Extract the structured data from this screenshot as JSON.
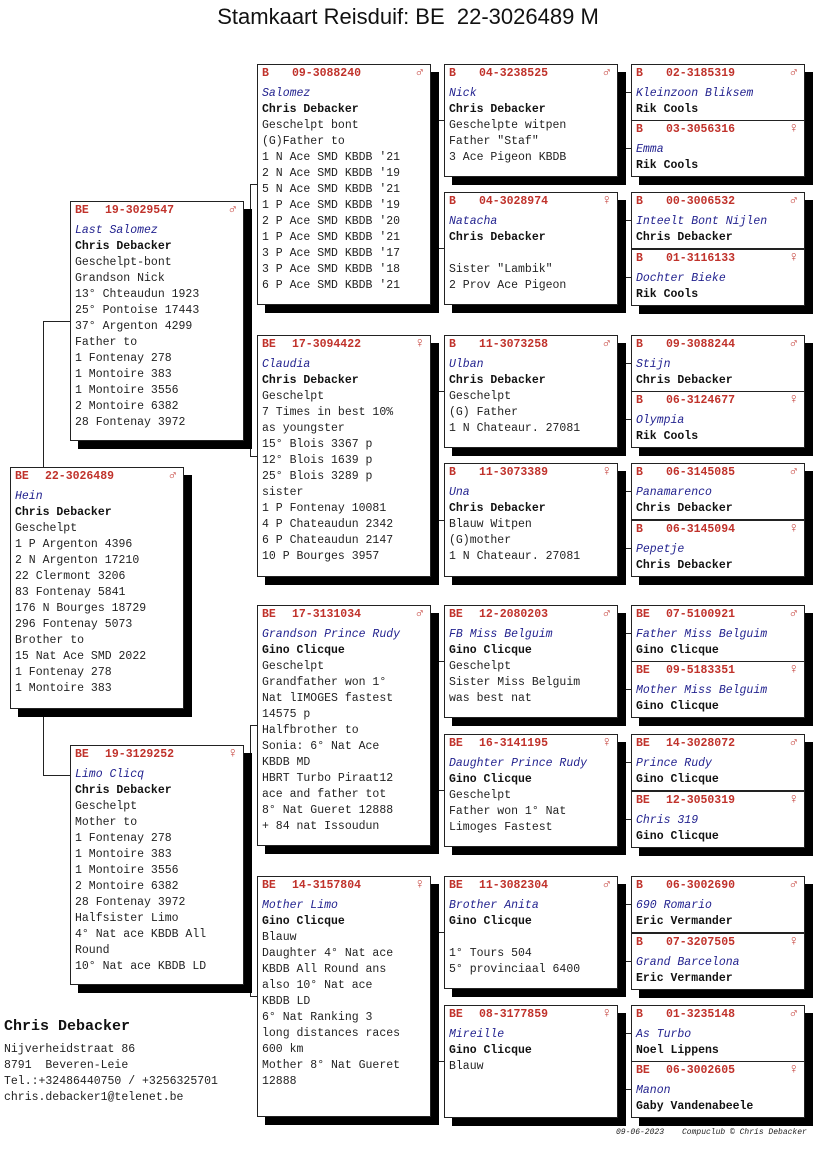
{
  "title": "Stamkaart Reisduif: BE  22-3026489 M",
  "colors": {
    "ring": "#c0322b",
    "name": "#23238f",
    "shadow": "#000000"
  },
  "pigeons": [
    {
      "id": "subject",
      "country": "BE",
      "ring": "22-3026489",
      "sex": "♂",
      "name": "Hein",
      "owner": "Chris Debacker",
      "lines": [
        "Geschelpt",
        "1 P Argenton 4396",
        "2 N Argenton 17210",
        "22 Clermont 3206",
        "83 Fontenay 5841",
        "176 N Bourges 18729",
        "296 Fontenay 5073",
        "Brother to",
        "15 Nat Ace SMD 2022",
        "1 Fontenay 278",
        "1 Montoire 383"
      ]
    },
    {
      "id": "father",
      "country": "BE",
      "ring": "19-3029547",
      "sex": "♂",
      "name": "Last Salomez",
      "owner": "Chris Debacker",
      "lines": [
        "Geschelpt-bont",
        "Grandson Nick",
        "13° Chteaudun 1923",
        "25° Pontoise 17443",
        "37° Argenton 4299",
        "Father to",
        "1 Fontenay 278",
        "1 Montoire 383",
        "1 Montoire 3556",
        "2 Montoire 6382",
        "28 Fontenay 3972"
      ]
    },
    {
      "id": "mother",
      "country": "BE",
      "ring": "19-3129252",
      "sex": "♀",
      "name": "Limo Clicq",
      "owner": "Chris Debacker",
      "lines": [
        "Geschelpt",
        "Mother to",
        "1 Fontenay 278",
        "1 Montoire 383",
        "1 Montoire 3556",
        "2 Montoire 6382",
        "28 Fontenay 3972",
        "Halfsister Limo",
        "4° Nat ace KBDB All",
        "Round",
        "10° Nat ace KBDB LD"
      ]
    },
    {
      "id": "ff",
      "country": "B",
      "ring": "09-3088240",
      "sex": "♂",
      "name": "Salomez",
      "owner": "Chris Debacker",
      "lines": [
        "Geschelpt bont",
        "(G)Father to",
        "1 N Ace SMD KBDB '21",
        "2 N Ace SMD KBDB '19",
        "5 N Ace SMD KBDB '21",
        "1 P Ace SMD KBDB '19",
        "2 P Ace SMD KBDB '20",
        "1 P Ace SMD KBDB '21",
        "3 P Ace SMD KBDB '17",
        "3 P Ace SMD KBDB '18",
        "6 P Ace SMD KBDB '21"
      ]
    },
    {
      "id": "fm",
      "country": "BE",
      "ring": "17-3094422",
      "sex": "♀",
      "name": "Claudia",
      "owner": "Chris Debacker",
      "lines": [
        "Geschelpt",
        "7 Times in best 10%",
        "as youngster",
        "15° Blois 3367 p",
        "12° Blois 1639 p",
        "25° Blois 3289 p",
        "sister",
        "1 P Fontenay 10081",
        "4 P Chateaudun 2342",
        "6 P Chateaudun 2147",
        "10 P Bourges 3957"
      ]
    },
    {
      "id": "mf",
      "country": "BE",
      "ring": "17-3131034",
      "sex": "♂",
      "name": "Grandson Prince Rudy",
      "owner": "Gino Clicque",
      "lines": [
        "Geschelpt",
        "Grandfather won 1°",
        "Nat lIMOGES fastest",
        "14575 p",
        "Halfbrother to",
        "Sonia: 6° Nat Ace",
        "KBDB MD",
        "HBRT Turbo Piraat12",
        "ace and father tot",
        "8° Nat Gueret 12888",
        "+ 84 nat Issoudun"
      ]
    },
    {
      "id": "mm",
      "country": "BE",
      "ring": "14-3157804",
      "sex": "♀",
      "name": "Mother Limo",
      "owner": "Gino Clicque",
      "lines": [
        "Blauw",
        "Daughter 4° Nat ace",
        "KBDB All Round ans",
        "also 10° Nat ace",
        "KBDB LD",
        "6° Nat Ranking 3",
        "long distances races",
        "600 km",
        "Mother 8° Nat Gueret",
        "12888"
      ]
    },
    {
      "id": "fff",
      "country": "B",
      "ring": "04-3238525",
      "sex": "♂",
      "name": "Nick",
      "owner": "Chris Debacker",
      "lines": [
        "Geschelpte witpen",
        "Father \"Staf\"",
        "3 Ace Pigeon KBDB"
      ]
    },
    {
      "id": "ffm",
      "country": "B",
      "ring": "04-3028974",
      "sex": "♀",
      "name": "Natacha",
      "owner": "Chris Debacker",
      "lines": [
        "",
        "Sister \"Lambik\"",
        "2 Prov Ace Pigeon"
      ]
    },
    {
      "id": "fmf",
      "country": "B",
      "ring": "11-3073258",
      "sex": "♂",
      "name": "Ulban",
      "owner": "Chris Debacker",
      "lines": [
        "Geschelpt",
        "(G) Father",
        "1 N Chateaur. 27081"
      ]
    },
    {
      "id": "fmm",
      "country": "B",
      "ring": "11-3073389",
      "sex": "♀",
      "name": "Una",
      "owner": "Chris Debacker",
      "lines": [
        "Blauw Witpen",
        "(G)mother",
        "1 N Chateaur. 27081"
      ]
    },
    {
      "id": "mff",
      "country": "BE",
      "ring": "12-2080203",
      "sex": "♂",
      "name": "FB Miss Belguim",
      "owner": "Gino Clicque",
      "lines": [
        "Geschelpt",
        "Sister Miss Belguim",
        "was best nat"
      ]
    },
    {
      "id": "mfm",
      "country": "BE",
      "ring": "16-3141195",
      "sex": "♀",
      "name": "Daughter Prince Rudy",
      "owner": "Gino Clicque",
      "lines": [
        "Geschelpt",
        "Father won 1° Nat",
        "Limoges Fastest"
      ]
    },
    {
      "id": "mmf",
      "country": "BE",
      "ring": "11-3082304",
      "sex": "♂",
      "name": "Brother Anita",
      "owner": "Gino Clicque",
      "lines": [
        "",
        "1° Tours 504",
        "5° provinciaal 6400"
      ]
    },
    {
      "id": "mmm",
      "country": "BE",
      "ring": "08-3177859",
      "sex": "♀",
      "name": "Mireille",
      "owner": "Gino Clicque",
      "lines": [
        "Blauw"
      ]
    },
    {
      "id": "g5-1",
      "country": "B",
      "ring": "02-3185319",
      "sex": "♂",
      "name": "Kleinzoon Bliksem",
      "owner": "Rik Cools",
      "lines": []
    },
    {
      "id": "g5-2",
      "country": "B",
      "ring": "03-3056316",
      "sex": "♀",
      "name": "Emma",
      "owner": "Rik Cools",
      "lines": []
    },
    {
      "id": "g5-3",
      "country": "B",
      "ring": "00-3006532",
      "sex": "♂",
      "name": "Inteelt Bont Nijlen",
      "owner": "Chris Debacker",
      "lines": []
    },
    {
      "id": "g5-4",
      "country": "B",
      "ring": "01-3116133",
      "sex": "♀",
      "name": "Dochter Bieke",
      "owner": "Rik Cools",
      "lines": []
    },
    {
      "id": "g5-5",
      "country": "B",
      "ring": "09-3088244",
      "sex": "♂",
      "name": "Stijn",
      "owner": "Chris Debacker",
      "lines": []
    },
    {
      "id": "g5-6",
      "country": "B",
      "ring": "06-3124677",
      "sex": "♀",
      "name": "Olympia",
      "owner": "Rik Cools",
      "lines": []
    },
    {
      "id": "g5-7",
      "country": "B",
      "ring": "06-3145085",
      "sex": "♂",
      "name": "Panamarenco",
      "owner": "Chris Debacker",
      "lines": []
    },
    {
      "id": "g5-8",
      "country": "B",
      "ring": "06-3145094",
      "sex": "♀",
      "name": "Pepetje",
      "owner": "Chris Debacker",
      "lines": []
    },
    {
      "id": "g5-9",
      "country": "BE",
      "ring": "07-5100921",
      "sex": "♂",
      "name": "Father Miss Belguim",
      "owner": "Gino Clicque",
      "lines": []
    },
    {
      "id": "g5-10",
      "country": "BE",
      "ring": "09-5183351",
      "sex": "♀",
      "name": "Mother Miss Belguim",
      "owner": "Gino Clicque",
      "lines": []
    },
    {
      "id": "g5-11",
      "country": "BE",
      "ring": "14-3028072",
      "sex": "♂",
      "name": "Prince Rudy",
      "owner": "Gino Clicque",
      "lines": []
    },
    {
      "id": "g5-12",
      "country": "BE",
      "ring": "12-3050319",
      "sex": "♀",
      "name": "Chris 319",
      "owner": "Gino Clicque",
      "lines": []
    },
    {
      "id": "g5-13",
      "country": "B",
      "ring": "06-3002690",
      "sex": "♂",
      "name": "690 Romario",
      "owner": "Eric Vermander",
      "lines": []
    },
    {
      "id": "g5-14",
      "country": "B",
      "ring": "07-3207505",
      "sex": "♀",
      "name": "Grand Barcelona",
      "owner": "Eric Vermander",
      "lines": []
    },
    {
      "id": "g5-15",
      "country": "B",
      "ring": "01-3235148",
      "sex": "♂",
      "name": "As Turbo",
      "owner": "Noel Lippens",
      "lines": []
    },
    {
      "id": "g5-16",
      "country": "BE",
      "ring": "06-3002605",
      "sex": "♀",
      "name": "Manon",
      "owner": "Gaby Vandenabeele",
      "lines": []
    }
  ],
  "breeder": {
    "name": "Chris Debacker",
    "address": "Nijverheidstraat 86",
    "city": "8791  Beveren-Leie",
    "phone": "Tel.:+32486440750 / +3256325701",
    "email": "chris.debacker1@telenet.be"
  },
  "footer": {
    "date": "09-06-2023",
    "credit": "Compuclub © Chris Debacker"
  }
}
